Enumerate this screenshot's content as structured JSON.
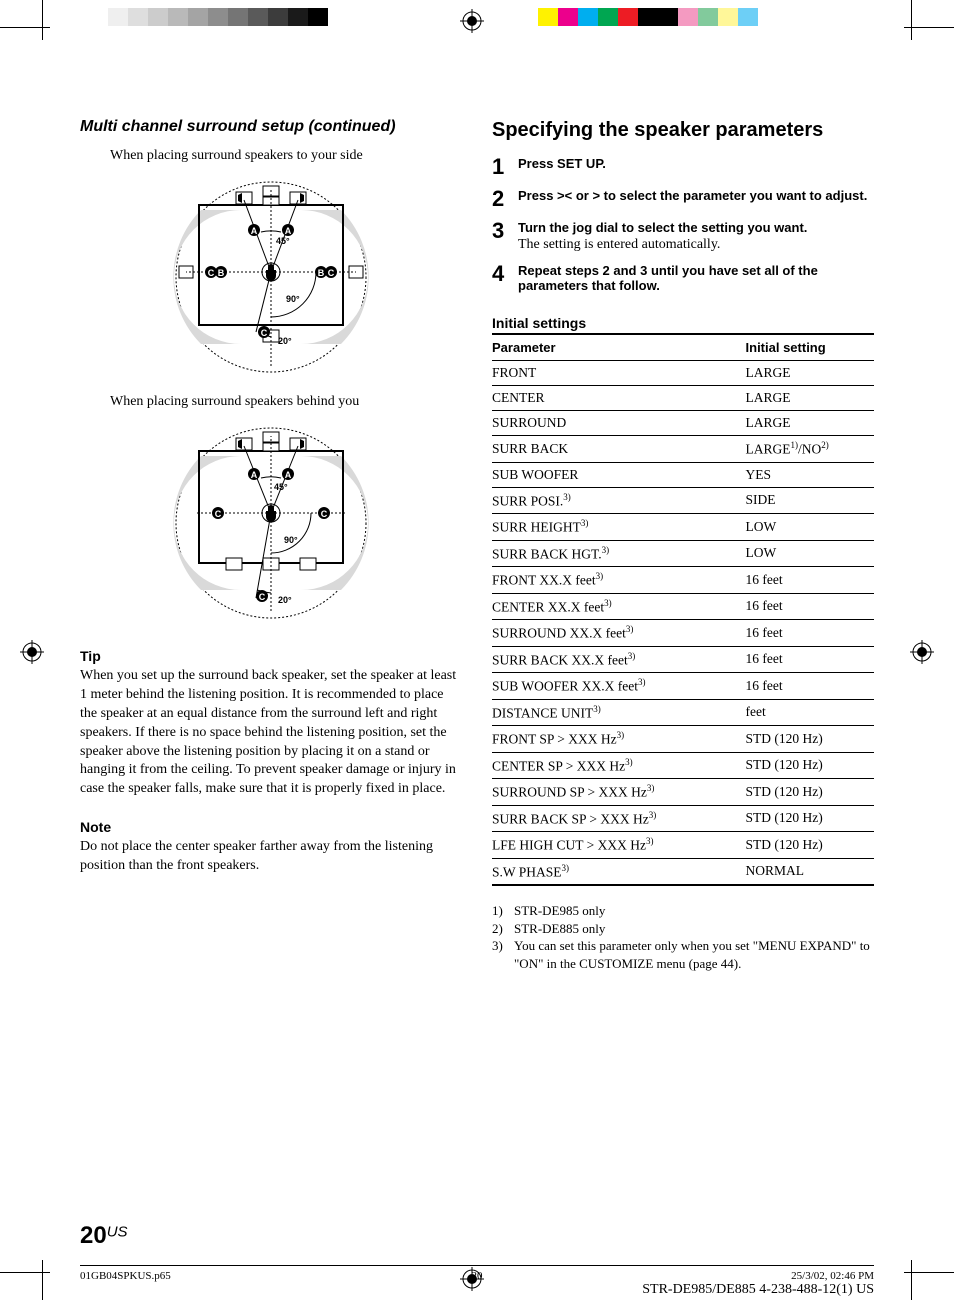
{
  "print_bars": {
    "gray_swatches": [
      "#ffffff",
      "#efefef",
      "#dedede",
      "#cccccc",
      "#b9b9b9",
      "#a4a4a4",
      "#8d8d8d",
      "#757575",
      "#5a5a5a",
      "#3c3c3c",
      "#1a1a1a",
      "#000000",
      "#ffffff"
    ],
    "color_swatches": [
      "#fff200",
      "#ec008c",
      "#00aeef",
      "#00a651",
      "#ed1c24",
      "#000000",
      "#000000",
      "#f49ac1",
      "#82ca9c",
      "#fff799",
      "#6dcff6"
    ]
  },
  "left": {
    "heading": "Multi channel surround setup (continued)",
    "caption1": "When placing surround speakers to your side",
    "caption2": "When placing surround speakers behind you",
    "diagram": {
      "angles": [
        "45°",
        "90°",
        "20°"
      ],
      "labels": [
        "A",
        "A",
        "B",
        "B",
        "C",
        "C"
      ]
    },
    "tip_head": "Tip",
    "tip_body": "When you set up the surround back speaker, set the speaker at least 1 meter behind the listening position. It is recommended to place the speaker at an equal distance from the surround left and right speakers. If there is no space behind the listening position, set the speaker above the listening position by placing it on a stand or hanging it from the ceiling. To prevent speaker damage or injury in case the speaker falls, make sure that it is properly fixed in place.",
    "note_head": "Note",
    "note_body": "Do not place the center speaker farther away from the listening position than the front speakers."
  },
  "right": {
    "heading": "Specifying the speaker parameters",
    "steps": [
      {
        "n": "1",
        "bold": "Press SET UP."
      },
      {
        "n": "2",
        "bold": "Press < or > to select the parameter you want to adjust."
      },
      {
        "n": "3",
        "bold": "Turn the jog dial to select the setting you want.",
        "plain": "The setting is entered automatically."
      },
      {
        "n": "4",
        "bold": "Repeat steps 2 and 3 until you have set all of the parameters that follow."
      }
    ],
    "init_head": "Initial settings",
    "table": {
      "head": [
        "Parameter",
        "Initial setting"
      ],
      "rows": [
        {
          "p": "FRONT",
          "sup": "",
          "v": "LARGE"
        },
        {
          "p": "CENTER",
          "sup": "",
          "v": "LARGE"
        },
        {
          "p": "SURROUND",
          "sup": "",
          "v": "LARGE"
        },
        {
          "p": "SURR BACK",
          "sup": "",
          "v": "LARGE",
          "vsup": "1)",
          "v2": "/NO",
          "v2sup": "2)"
        },
        {
          "p": "SUB WOOFER",
          "sup": "",
          "v": "YES"
        },
        {
          "p": "SURR POSI.",
          "sup": "3)",
          "v": "SIDE"
        },
        {
          "p": "SURR HEIGHT",
          "sup": "3)",
          "v": "LOW"
        },
        {
          "p": "SURR BACK HGT.",
          "sup": "3)",
          "v": "LOW"
        },
        {
          "p": "FRONT XX.X feet",
          "sup": "3)",
          "v": "16 feet"
        },
        {
          "p": "CENTER XX.X feet",
          "sup": "3)",
          "v": "16 feet"
        },
        {
          "p": "SURROUND XX.X feet",
          "sup": "3)",
          "v": "16 feet"
        },
        {
          "p": "SURR BACK XX.X feet",
          "sup": "3)",
          "v": "16 feet"
        },
        {
          "p": "SUB WOOFER XX.X feet",
          "sup": "3)",
          "v": "16 feet"
        },
        {
          "p": "DISTANCE UNIT",
          "sup": "3)",
          "v": "feet"
        },
        {
          "p": "FRONT SP > XXX Hz",
          "sup": "3)",
          "v": "STD (120 Hz)"
        },
        {
          "p": "CENTER SP > XXX Hz",
          "sup": "3)",
          "v": "STD (120 Hz)"
        },
        {
          "p": "SURROUND SP > XXX Hz",
          "sup": "3)",
          "v": "STD (120 Hz)"
        },
        {
          "p": "SURR BACK SP > XXX Hz",
          "sup": "3)",
          "v": "STD (120 Hz)"
        },
        {
          "p": "LFE HIGH CUT > XXX Hz",
          "sup": "3)",
          "v": "STD (120 Hz)"
        },
        {
          "p": "S.W PHASE",
          "sup": "3)",
          "v": "NORMAL"
        }
      ]
    },
    "footnotes": [
      {
        "idx": "1)",
        "text": "STR-DE985 only"
      },
      {
        "idx": "2)",
        "text": "STR-DE885 only"
      },
      {
        "idx": "3)",
        "text": "You can set this parameter only when you set \"MENU EXPAND\" to \"ON\" in the CUSTOMIZE menu (page 44)."
      }
    ]
  },
  "page_number": {
    "n": "20",
    "suffix": "US"
  },
  "footer": {
    "file": "01GB04SPKUS.p65",
    "page": "20",
    "datetime": "25/3/02, 02:46 PM"
  },
  "model_line": "STR-DE985/DE885    4-238-488-12(1) US"
}
